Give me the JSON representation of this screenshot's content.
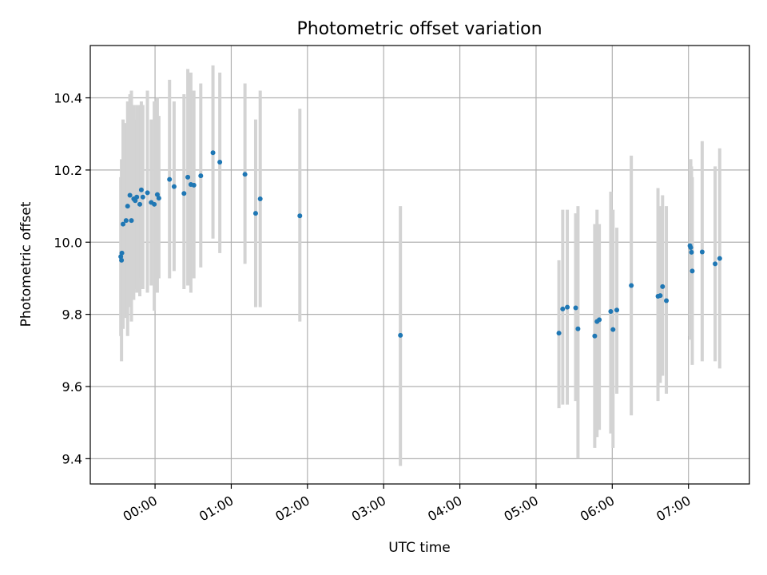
{
  "chart_data": {
    "type": "scatter",
    "title": "Photometric offset variation",
    "xlabel": "UTC time",
    "ylabel": "Photometric offset",
    "xlim_hours": [
      -0.85,
      7.8
    ],
    "ylim": [
      9.33,
      10.545
    ],
    "grid": true,
    "legend": "none",
    "x_ticks": [
      {
        "value": 0,
        "label": "00:00"
      },
      {
        "value": 1,
        "label": "01:00"
      },
      {
        "value": 2,
        "label": "02:00"
      },
      {
        "value": 3,
        "label": "03:00"
      },
      {
        "value": 4,
        "label": "04:00"
      },
      {
        "value": 5,
        "label": "05:00"
      },
      {
        "value": 6,
        "label": "06:00"
      },
      {
        "value": 7,
        "label": "07:00"
      }
    ],
    "y_ticks": [
      {
        "value": 9.4,
        "label": "9.4"
      },
      {
        "value": 9.6,
        "label": "9.6"
      },
      {
        "value": 9.8,
        "label": "9.8"
      },
      {
        "value": 10.0,
        "label": "10.0"
      },
      {
        "value": 10.2,
        "label": "10.2"
      },
      {
        "value": 10.4,
        "label": "10.4"
      }
    ],
    "colors": {
      "point": "#1f77b4",
      "errorbar": "#d3d3d3",
      "grid": "#b0b0b0"
    },
    "series": [
      {
        "points": [
          {
            "t": -0.45,
            "y": 9.96,
            "lo": 9.74,
            "hi": 10.18
          },
          {
            "t": -0.44,
            "y": 9.95,
            "lo": 9.67,
            "hi": 10.23
          },
          {
            "t": -0.435,
            "y": 9.97,
            "lo": 9.76,
            "hi": 10.18
          },
          {
            "t": -0.42,
            "y": 10.05,
            "lo": 9.76,
            "hi": 10.34
          },
          {
            "t": -0.38,
            "y": 10.06,
            "lo": 9.79,
            "hi": 10.33
          },
          {
            "t": -0.36,
            "y": 10.1,
            "lo": 9.74,
            "hi": 10.39
          },
          {
            "t": -0.33,
            "y": 10.13,
            "lo": 9.82,
            "hi": 10.41
          },
          {
            "t": -0.31,
            "y": 10.06,
            "lo": 9.78,
            "hi": 10.42
          },
          {
            "t": -0.28,
            "y": 10.12,
            "lo": 9.84,
            "hi": 10.38
          },
          {
            "t": -0.26,
            "y": 10.115,
            "lo": 9.87,
            "hi": 10.34
          },
          {
            "t": -0.24,
            "y": 10.125,
            "lo": 9.86,
            "hi": 10.38
          },
          {
            "t": -0.2,
            "y": 10.105,
            "lo": 9.85,
            "hi": 10.38
          },
          {
            "t": -0.18,
            "y": 10.145,
            "lo": 9.9,
            "hi": 10.39
          },
          {
            "t": -0.16,
            "y": 10.125,
            "lo": 9.87,
            "hi": 10.38
          },
          {
            "t": -0.1,
            "y": 10.137,
            "lo": 9.86,
            "hi": 10.42
          },
          {
            "t": -0.05,
            "y": 10.11,
            "lo": 9.88,
            "hi": 10.34
          },
          {
            "t": -0.01,
            "y": 10.105,
            "lo": 9.81,
            "hi": 10.39
          },
          {
            "t": 0.03,
            "y": 10.132,
            "lo": 9.86,
            "hi": 10.4
          },
          {
            "t": 0.05,
            "y": 10.122,
            "lo": 9.9,
            "hi": 10.35
          },
          {
            "t": 0.19,
            "y": 10.174,
            "lo": 9.9,
            "hi": 10.45
          },
          {
            "t": 0.25,
            "y": 10.154,
            "lo": 9.92,
            "hi": 10.39
          },
          {
            "t": 0.38,
            "y": 10.135,
            "lo": 9.87,
            "hi": 10.41
          },
          {
            "t": 0.43,
            "y": 10.18,
            "lo": 9.88,
            "hi": 10.48
          },
          {
            "t": 0.47,
            "y": 10.16,
            "lo": 9.86,
            "hi": 10.47
          },
          {
            "t": 0.51,
            "y": 10.158,
            "lo": 9.9,
            "hi": 10.42
          },
          {
            "t": 0.6,
            "y": 10.184,
            "lo": 9.93,
            "hi": 10.44
          },
          {
            "t": 0.76,
            "y": 10.248,
            "lo": 10.01,
            "hi": 10.49
          },
          {
            "t": 0.85,
            "y": 10.222,
            "lo": 9.97,
            "hi": 10.47
          },
          {
            "t": 1.18,
            "y": 10.188,
            "lo": 9.94,
            "hi": 10.44
          },
          {
            "t": 1.32,
            "y": 10.08,
            "lo": 9.82,
            "hi": 10.34
          },
          {
            "t": 1.38,
            "y": 10.12,
            "lo": 9.82,
            "hi": 10.42
          },
          {
            "t": 1.9,
            "y": 10.073,
            "lo": 9.78,
            "hi": 10.37
          },
          {
            "t": 3.22,
            "y": 9.742,
            "lo": 9.38,
            "hi": 10.1
          },
          {
            "t": 5.3,
            "y": 9.748,
            "lo": 9.54,
            "hi": 9.95
          },
          {
            "t": 5.35,
            "y": 9.815,
            "lo": 9.55,
            "hi": 10.09
          },
          {
            "t": 5.41,
            "y": 9.82,
            "lo": 9.55,
            "hi": 10.09
          },
          {
            "t": 5.52,
            "y": 9.818,
            "lo": 9.56,
            "hi": 10.08
          },
          {
            "t": 5.55,
            "y": 9.76,
            "lo": 9.4,
            "hi": 10.1
          },
          {
            "t": 5.77,
            "y": 9.74,
            "lo": 9.43,
            "hi": 10.05
          },
          {
            "t": 5.8,
            "y": 9.78,
            "lo": 9.46,
            "hi": 10.09
          },
          {
            "t": 5.83,
            "y": 9.785,
            "lo": 9.48,
            "hi": 10.05
          },
          {
            "t": 5.98,
            "y": 9.808,
            "lo": 9.47,
            "hi": 10.14
          },
          {
            "t": 6.01,
            "y": 9.758,
            "lo": 9.43,
            "hi": 10.09
          },
          {
            "t": 6.06,
            "y": 9.812,
            "lo": 9.58,
            "hi": 10.04
          },
          {
            "t": 6.25,
            "y": 9.88,
            "lo": 9.52,
            "hi": 10.24
          },
          {
            "t": 6.6,
            "y": 9.85,
            "lo": 9.56,
            "hi": 10.15
          },
          {
            "t": 6.63,
            "y": 9.852,
            "lo": 9.61,
            "hi": 10.1
          },
          {
            "t": 6.66,
            "y": 9.877,
            "lo": 9.63,
            "hi": 10.13
          },
          {
            "t": 6.71,
            "y": 9.838,
            "lo": 9.58,
            "hi": 10.1
          },
          {
            "t": 7.02,
            "y": 9.99,
            "lo": 9.74,
            "hi": 10.23
          },
          {
            "t": 7.03,
            "y": 9.985,
            "lo": 9.73,
            "hi": 10.23
          },
          {
            "t": 7.04,
            "y": 9.972,
            "lo": 9.73,
            "hi": 10.21
          },
          {
            "t": 7.05,
            "y": 9.92,
            "lo": 9.66,
            "hi": 10.18
          },
          {
            "t": 7.18,
            "y": 9.973,
            "lo": 9.67,
            "hi": 10.28
          },
          {
            "t": 7.35,
            "y": 9.94,
            "lo": 9.67,
            "hi": 10.21
          },
          {
            "t": 7.41,
            "y": 9.955,
            "lo": 9.65,
            "hi": 10.26
          }
        ]
      }
    ]
  }
}
